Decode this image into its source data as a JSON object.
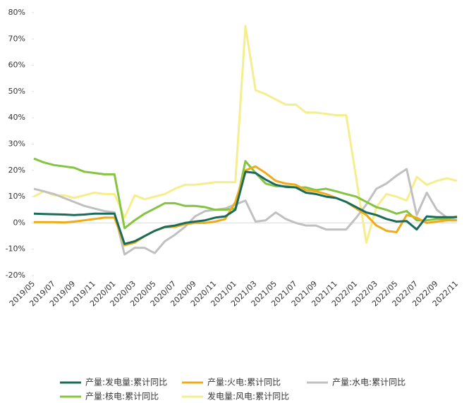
{
  "chart_data": {
    "type": "line",
    "categories": [
      "2019/05",
      null,
      "2019/07",
      null,
      "2019/09",
      null,
      "2019/11",
      null,
      "2020/01",
      null,
      "2020/03",
      null,
      "2020/05",
      null,
      "2020/07",
      null,
      "2020/09",
      null,
      "2020/11",
      null,
      "2021/01",
      null,
      "2021/03",
      null,
      "2021/05",
      null,
      "2021/07",
      null,
      "2021/09",
      null,
      "2021/11",
      null,
      "2022/01",
      null,
      "2022/03",
      null,
      "2022/05",
      null,
      "2022/07",
      null,
      "2022/09",
      null,
      "2022/11"
    ],
    "series": [
      {
        "name": "产量:发电量:累计同比",
        "color": "#1a6b5a",
        "values": [
          3.5,
          3.4,
          3.3,
          3.2,
          3.0,
          3.2,
          3.5,
          3.5,
          3.5,
          -8,
          -7,
          -5,
          -3,
          -1.5,
          -1,
          0,
          0.5,
          1,
          2,
          2.5,
          5,
          19.5,
          19,
          16.5,
          14.5,
          13.7,
          13.5,
          11.5,
          11,
          10,
          9.5,
          8,
          6,
          4,
          3,
          1.5,
          0.5,
          0.7,
          -2.5,
          2.5,
          2.2,
          2.2,
          2.2
        ]
      },
      {
        "name": "产量:火电:累计同比",
        "color": "#eeab1a",
        "values": [
          0.3,
          0.3,
          0.3,
          0.2,
          0.5,
          1,
          1.5,
          2,
          2,
          -8.5,
          -7.5,
          -5,
          -3,
          -1.7,
          -1.5,
          -0.5,
          0,
          0,
          0.5,
          1.5,
          8,
          20,
          21.5,
          19,
          16,
          15,
          14.5,
          12.5,
          12,
          11,
          9.5,
          8,
          5.5,
          3,
          -1,
          -3,
          -3.5,
          3,
          2,
          0,
          0.5,
          1,
          1
        ]
      },
      {
        "name": "产量:水电:累计同比",
        "color": "#c0c0c0",
        "values": [
          13,
          12,
          11,
          9.5,
          8,
          6.5,
          5.5,
          4.5,
          4,
          -12,
          -9.5,
          -9.5,
          -11.5,
          -7,
          -4.5,
          -1.5,
          2.5,
          4.5,
          5,
          5.5,
          7,
          8.5,
          0.5,
          1,
          4,
          1.5,
          0,
          -1,
          -1,
          -2.5,
          -2.5,
          -2.5,
          2,
          7,
          13,
          15,
          18,
          20.5,
          3,
          11.5,
          5,
          2,
          1
        ]
      },
      {
        "name": "产量:核电:累计同比",
        "color": "#84c441",
        "values": [
          24.5,
          23,
          22,
          21.5,
          21,
          19.5,
          19,
          18.5,
          18.5,
          -2,
          1,
          3.5,
          5.5,
          7.5,
          7.5,
          6.5,
          6.5,
          6,
          5,
          5,
          5.5,
          23.5,
          19,
          15,
          14,
          14,
          13.5,
          13.5,
          12.5,
          13,
          12,
          11,
          10,
          8,
          6,
          5,
          3.5,
          4.5,
          1,
          1,
          1.5,
          1.5,
          2.5
        ]
      },
      {
        "name": "发电量:风电:累计同比",
        "color": "#f6ee8e",
        "values": [
          10,
          12,
          10.5,
          10.5,
          9.5,
          10.5,
          11.5,
          11,
          11,
          2,
          10.5,
          9,
          10,
          11,
          13,
          14.5,
          14.5,
          15,
          15.5,
          15.5,
          15.5,
          75,
          50.5,
          49,
          47,
          45,
          45,
          42,
          42,
          41.5,
          41,
          41,
          17,
          -7.5,
          6,
          11,
          10,
          8.5,
          17.5,
          14.5,
          16,
          17,
          16
        ]
      }
    ],
    "ylim": [
      -20,
      80
    ],
    "yticks": [
      {
        "value": -20,
        "label": "-20%"
      },
      {
        "value": -10,
        "label": "-10%"
      },
      {
        "value": 0,
        "label": "0%"
      },
      {
        "value": 10,
        "label": "10%"
      },
      {
        "value": 20,
        "label": "20%"
      },
      {
        "value": 30,
        "label": "30%"
      },
      {
        "value": 40,
        "label": "40%"
      },
      {
        "value": 50,
        "label": "50%"
      },
      {
        "value": 60,
        "label": "60%"
      },
      {
        "value": 70,
        "label": "70%"
      },
      {
        "value": 80,
        "label": "80%"
      }
    ]
  }
}
